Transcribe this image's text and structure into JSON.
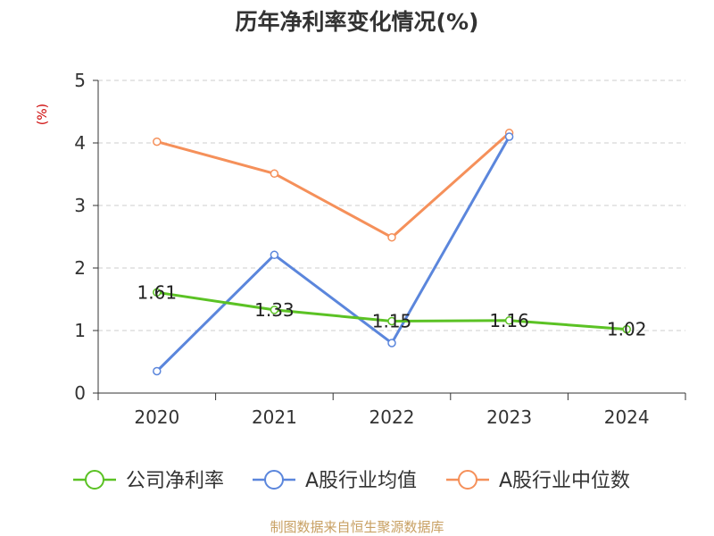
{
  "chart_data": {
    "type": "line",
    "title": "历年净利率变化情况(%)",
    "ylabel": "(%)",
    "xlabel": "",
    "categories": [
      "2020",
      "2021",
      "2022",
      "2023",
      "2024"
    ],
    "ylim": [
      0,
      5
    ],
    "yticks": [
      "0",
      "1",
      "2",
      "3",
      "4",
      "5"
    ],
    "grid": true,
    "legend_position": "bottom",
    "series": [
      {
        "name": "公司净利率",
        "color": "#5bc224",
        "values": [
          1.61,
          1.33,
          1.15,
          1.16,
          1.02
        ],
        "labels": [
          "1.61",
          "1.33",
          "1.15",
          "1.16",
          "1.02"
        ]
      },
      {
        "name": "A股行业均值",
        "color": "#5b86dc",
        "values": [
          0.35,
          2.21,
          0.8,
          4.1,
          null
        ]
      },
      {
        "name": "A股行业中位数",
        "color": "#f5905a",
        "values": [
          4.02,
          3.51,
          2.49,
          4.16,
          null
        ]
      }
    ]
  },
  "footer": {
    "source": "制图数据来自恒生聚源数据库",
    "color": "#c8a063"
  },
  "colors": {
    "title": "#333333",
    "ylabel": "#cc0000",
    "axis": "#333333",
    "grid": "#cccccc"
  }
}
